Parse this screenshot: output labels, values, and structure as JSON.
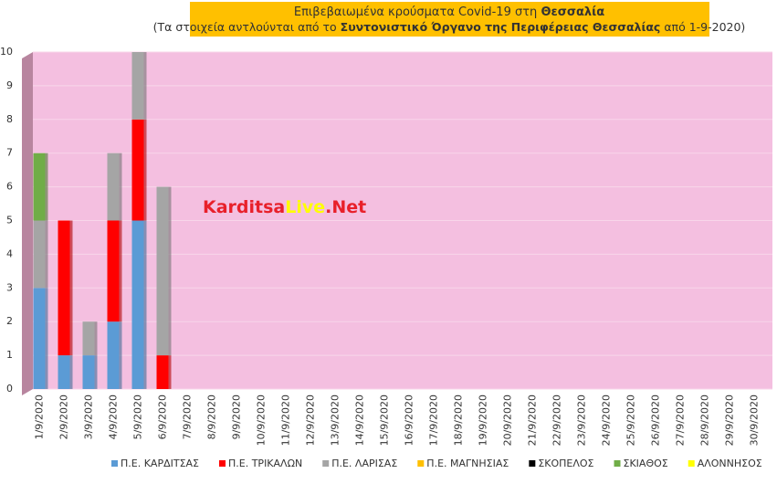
{
  "chart_data": {
    "type": "stacked_bar",
    "title": [
      "Επιβεβαιωμένα κρούσματα Covid-19 στη",
      "Θεσσαλία"
    ],
    "subtitle": [
      "(Τα στοιχεία αντλούνται από το",
      "Συντονιστικό Όργανο της Περιφέρειας Θεσσαλίας",
      "από 1-9-2020)"
    ],
    "annotation": [
      "Karditsa",
      "Live",
      ".Net"
    ],
    "categories": [
      "1/9/2020",
      "2/9/2020",
      "3/9/2020",
      "4/9/2020",
      "5/9/2020",
      "6/9/2020",
      "7/9/2020",
      "8/9/2020",
      "9/9/2020",
      "10/9/2020",
      "11/9/2020",
      "12/9/2020",
      "13/9/2020",
      "14/9/2020",
      "15/9/2020",
      "16/9/2020",
      "17/9/2020",
      "18/9/2020",
      "19/9/2020",
      "20/9/2020",
      "21/9/2020",
      "22/9/2020",
      "23/9/2020",
      "24/9/2020",
      "25/9/2020",
      "26/9/2020",
      "27/9/2020",
      "28/9/2020",
      "29/9/2020",
      "30/9/2020"
    ],
    "series": [
      {
        "name": "Π.Ε. ΚΑΡΔΙΤΣΑΣ",
        "color": "#5b9bd5",
        "values": [
          3,
          1,
          1,
          2,
          5,
          0,
          0,
          0,
          0,
          0,
          0,
          0,
          0,
          0,
          0,
          0,
          0,
          0,
          0,
          0,
          0,
          0,
          0,
          0,
          0,
          0,
          0,
          0,
          0,
          0
        ]
      },
      {
        "name": "Π.Ε. ΤΡΙΚΑΛΩΝ",
        "color": "#ff0000",
        "values": [
          0,
          4,
          0,
          3,
          3,
          1,
          0,
          0,
          0,
          0,
          0,
          0,
          0,
          0,
          0,
          0,
          0,
          0,
          0,
          0,
          0,
          0,
          0,
          0,
          0,
          0,
          0,
          0,
          0,
          0
        ]
      },
      {
        "name": "Π.Ε. ΛΑΡΙΣΑΣ",
        "color": "#a5a5a5",
        "values": [
          2,
          0,
          1,
          2,
          2,
          5,
          0,
          0,
          0,
          0,
          0,
          0,
          0,
          0,
          0,
          0,
          0,
          0,
          0,
          0,
          0,
          0,
          0,
          0,
          0,
          0,
          0,
          0,
          0,
          0
        ]
      },
      {
        "name": "Π.Ε. ΜΑΓΝΗΣΙΑΣ",
        "color": "#ffc000",
        "values": [
          0,
          0,
          0,
          0,
          0,
          0,
          0,
          0,
          0,
          0,
          0,
          0,
          0,
          0,
          0,
          0,
          0,
          0,
          0,
          0,
          0,
          0,
          0,
          0,
          0,
          0,
          0,
          0,
          0,
          0
        ]
      },
      {
        "name": "ΣΚΟΠΕΛΟΣ",
        "color": "#000000",
        "values": [
          0,
          0,
          0,
          0,
          0,
          0,
          0,
          0,
          0,
          0,
          0,
          0,
          0,
          0,
          0,
          0,
          0,
          0,
          0,
          0,
          0,
          0,
          0,
          0,
          0,
          0,
          0,
          0,
          0,
          0
        ]
      },
      {
        "name": "ΣΚΙΑΘΟΣ",
        "color": "#70ad47",
        "values": [
          2,
          0,
          0,
          0,
          0,
          0,
          0,
          0,
          0,
          0,
          0,
          0,
          0,
          0,
          0,
          0,
          0,
          0,
          0,
          0,
          0,
          0,
          0,
          0,
          0,
          0,
          0,
          0,
          0,
          0
        ]
      },
      {
        "name": "ΑΛΟΝΝΗΣΟΣ",
        "color": "#ffff00",
        "values": [
          0,
          0,
          0,
          0,
          0,
          0,
          0,
          0,
          0,
          0,
          0,
          0,
          0,
          0,
          0,
          0,
          0,
          0,
          0,
          0,
          0,
          0,
          0,
          0,
          0,
          0,
          0,
          0,
          0,
          0
        ]
      }
    ],
    "ylim": [
      0,
      10
    ],
    "yticks": [
      0,
      1,
      2,
      3,
      4,
      5,
      6,
      7,
      8,
      9,
      10
    ],
    "grid": true
  }
}
